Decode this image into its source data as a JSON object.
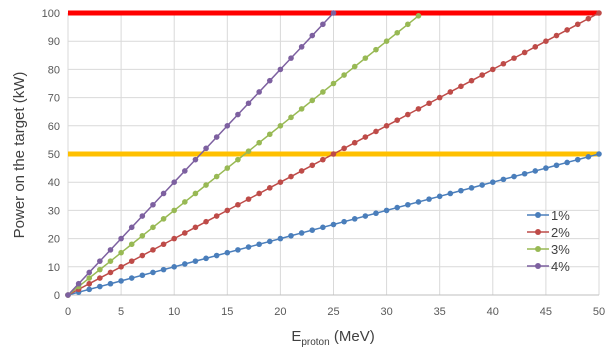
{
  "chart_data": {
    "type": "line",
    "title": "",
    "xlabel": "E",
    "xlabel_subscript": "proton",
    "xlabel_unit": " (MeV)",
    "ylabel": "Power on the target (kW)",
    "xlim": [
      0,
      50
    ],
    "ylim": [
      0,
      100
    ],
    "xticks": [
      0,
      5,
      10,
      15,
      20,
      25,
      30,
      35,
      40,
      45,
      50
    ],
    "yticks": [
      0,
      10,
      20,
      30,
      40,
      50,
      60,
      70,
      80,
      90,
      100
    ],
    "grid": true,
    "legend_position": "right",
    "series": [
      {
        "name": "1%",
        "color": "#4a7ebb",
        "slope_kw_per_mev": 1,
        "x_start": 0,
        "x_end": 50,
        "x_step": 1
      },
      {
        "name": "2%",
        "color": "#be4b48",
        "slope_kw_per_mev": 2,
        "x_start": 0,
        "x_end": 50,
        "x_step": 1
      },
      {
        "name": "3%",
        "color": "#98b954",
        "slope_kw_per_mev": 3,
        "x_start": 0,
        "x_end": 33,
        "x_step": 1
      },
      {
        "name": "4%",
        "color": "#7d60a0",
        "slope_kw_per_mev": 4,
        "x_start": 0,
        "x_end": 25,
        "x_step": 1
      }
    ],
    "reference_lines": [
      {
        "y": 100,
        "color": "#ff0000"
      },
      {
        "y": 50,
        "color": "#ffc000"
      }
    ]
  }
}
